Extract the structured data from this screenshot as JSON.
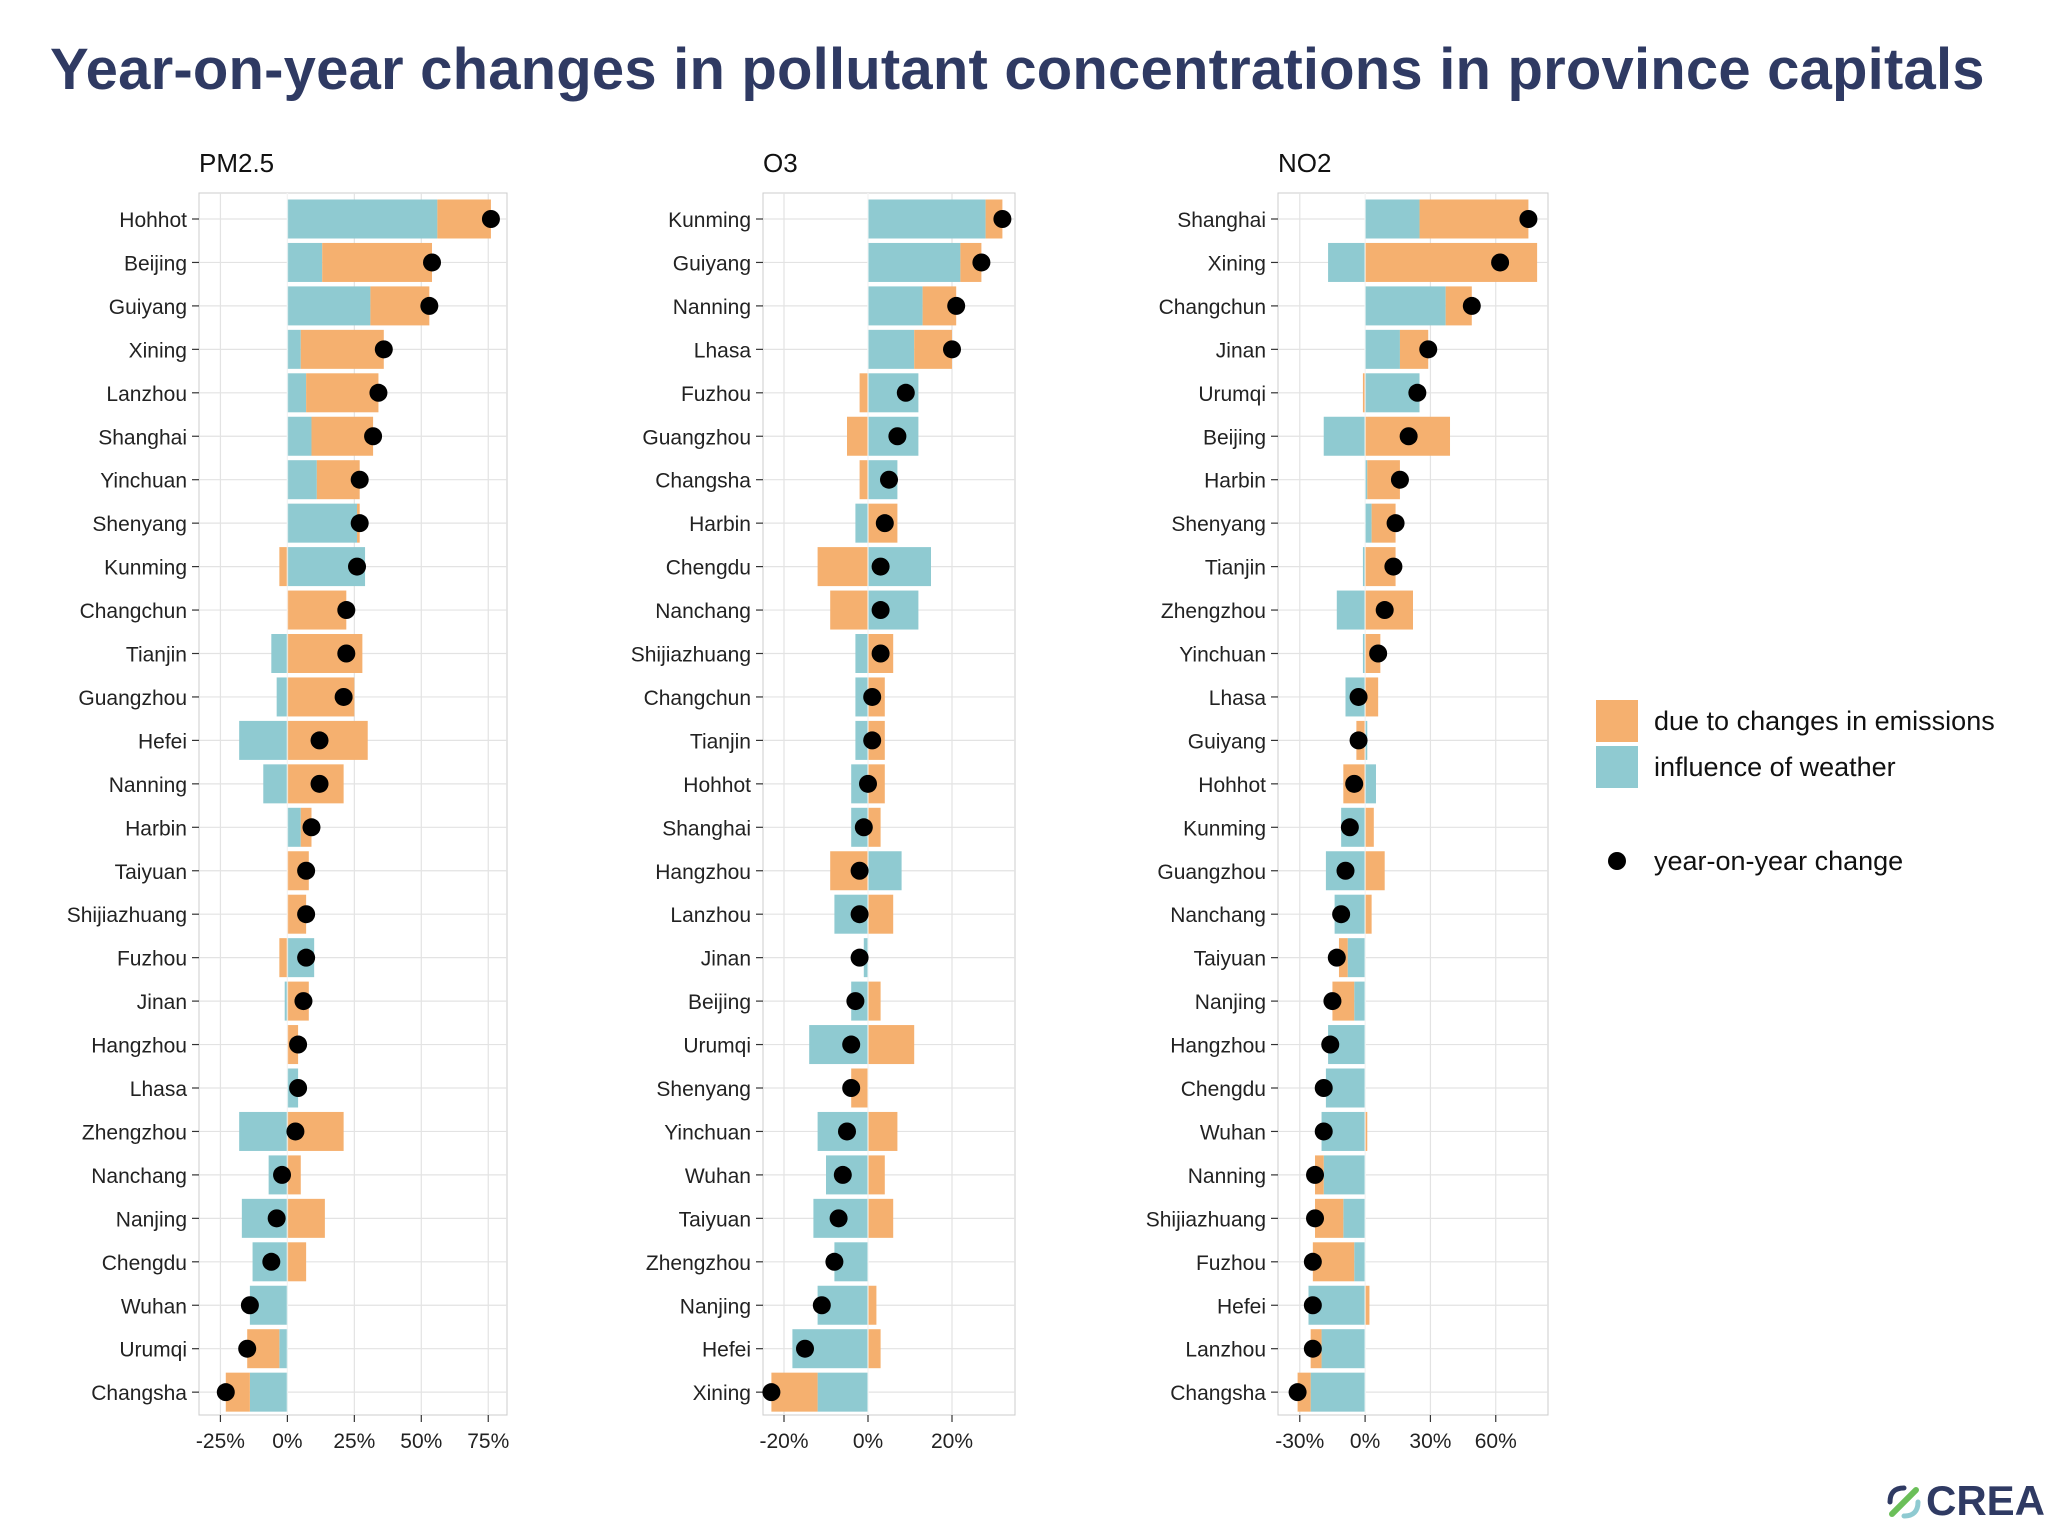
{
  "title": "Year-on-year changes in pollutant concentrations in province capitals",
  "legend": {
    "emissions_label": "due to changes in emissions",
    "weather_label": "influence of weather",
    "yoy_label": "year-on-year change"
  },
  "logo": {
    "text": "CREA",
    "icon": "crea-leaf-icon"
  },
  "colors": {
    "emissions": "#f5b06f",
    "weather": "#8fcad1",
    "dot": "#000000",
    "title": "#2f3a63",
    "grid": "#e3e3e3",
    "frame": "#cccccc"
  },
  "chart_data": [
    {
      "type": "bar",
      "subtitle": "PM2.5",
      "x_ticks": [
        -25,
        0,
        25,
        50,
        75
      ],
      "x_tick_labels": [
        "-25%",
        "0%",
        "25%",
        "50%",
        "75%"
      ],
      "xlim": [
        -33,
        82
      ],
      "grid": true,
      "cities": [
        "Hohhot",
        "Beijing",
        "Guiyang",
        "Xining",
        "Lanzhou",
        "Shanghai",
        "Yinchuan",
        "Shenyang",
        "Kunming",
        "Changchun",
        "Tianjin",
        "Guangzhou",
        "Hefei",
        "Nanning",
        "Harbin",
        "Taiyuan",
        "Shijiazhuang",
        "Fuzhou",
        "Jinan",
        "Hangzhou",
        "Lhasa",
        "Zhengzhou",
        "Nanchang",
        "Nanjing",
        "Chengdu",
        "Wuhan",
        "Urumqi",
        "Changsha"
      ],
      "series": [
        {
          "name": "influence of weather",
          "values": [
            56,
            13,
            31,
            5,
            7,
            9,
            11,
            26,
            29,
            0,
            -6,
            -4,
            -18,
            -9,
            5,
            0,
            0,
            10,
            -1,
            0,
            4,
            -18,
            -7,
            -17,
            -13,
            -14,
            -3,
            -14
          ]
        },
        {
          "name": "due to changes in emissions",
          "values": [
            20,
            41,
            22,
            31,
            27,
            23,
            16,
            1,
            -3,
            22,
            28,
            25,
            30,
            21,
            4,
            8,
            7,
            -3,
            8,
            4,
            0,
            21,
            5,
            14,
            7,
            0,
            -12,
            -9
          ]
        },
        {
          "name": "year-on-year change",
          "values": [
            76,
            54,
            53,
            36,
            34,
            32,
            27,
            27,
            26,
            22,
            22,
            21,
            12,
            12,
            9,
            7,
            7,
            7,
            6,
            4,
            4,
            3,
            -2,
            -4,
            -6,
            -14,
            -15,
            -23
          ]
        }
      ]
    },
    {
      "type": "bar",
      "subtitle": "O3",
      "x_ticks": [
        -20,
        0,
        20
      ],
      "x_tick_labels": [
        "-20%",
        "0%",
        "20%"
      ],
      "xlim": [
        -25,
        35
      ],
      "grid": true,
      "cities": [
        "Kunming",
        "Guiyang",
        "Nanning",
        "Lhasa",
        "Fuzhou",
        "Guangzhou",
        "Changsha",
        "Harbin",
        "Chengdu",
        "Nanchang",
        "Shijiazhuang",
        "Changchun",
        "Tianjin",
        "Hohhot",
        "Shanghai",
        "Hangzhou",
        "Lanzhou",
        "Jinan",
        "Beijing",
        "Urumqi",
        "Shenyang",
        "Yinchuan",
        "Wuhan",
        "Taiyuan",
        "Zhengzhou",
        "Nanjing",
        "Hefei",
        "Xining"
      ],
      "series": [
        {
          "name": "influence of weather",
          "values": [
            28,
            22,
            13,
            11,
            12,
            12,
            7,
            -3,
            15,
            12,
            -3,
            -3,
            -3,
            -4,
            -4,
            8,
            -8,
            -1,
            -4,
            -14,
            0,
            -12,
            -10,
            -13,
            -8,
            -12,
            -18,
            -12
          ]
        },
        {
          "name": "due to changes in emissions",
          "values": [
            4,
            5,
            8,
            9,
            -2,
            -5,
            -2,
            7,
            -12,
            -9,
            6,
            4,
            4,
            4,
            3,
            -9,
            6,
            0,
            3,
            11,
            -4,
            7,
            4,
            6,
            0,
            2,
            3,
            -11
          ]
        },
        {
          "name": "year-on-year change",
          "values": [
            32,
            27,
            21,
            20,
            9,
            7,
            5,
            4,
            3,
            3,
            3,
            1,
            1,
            0,
            -1,
            -2,
            -2,
            -2,
            -3,
            -4,
            -4,
            -5,
            -6,
            -7,
            -8,
            -11,
            -15,
            -23
          ]
        }
      ]
    },
    {
      "type": "bar",
      "subtitle": "NO2",
      "x_ticks": [
        -30,
        0,
        30,
        60
      ],
      "x_tick_labels": [
        "-30%",
        "0%",
        "30%",
        "60%"
      ],
      "xlim": [
        -40,
        84
      ],
      "grid": true,
      "cities": [
        "Shanghai",
        "Xining",
        "Changchun",
        "Jinan",
        "Urumqi",
        "Beijing",
        "Harbin",
        "Shenyang",
        "Tianjin",
        "Zhengzhou",
        "Yinchuan",
        "Lhasa",
        "Guiyang",
        "Hohhot",
        "Kunming",
        "Guangzhou",
        "Nanchang",
        "Taiyuan",
        "Nanjing",
        "Hangzhou",
        "Chengdu",
        "Wuhan",
        "Nanning",
        "Shijiazhuang",
        "Fuzhou",
        "Hefei",
        "Lanzhou",
        "Changsha"
      ],
      "series": [
        {
          "name": "influence of weather",
          "values": [
            25,
            -17,
            37,
            16,
            25,
            -19,
            1,
            3,
            -1,
            -13,
            -1,
            -9,
            1,
            5,
            -11,
            -18,
            -14,
            -8,
            -5,
            -17,
            -18,
            -20,
            -19,
            -10,
            -5,
            -26,
            -20,
            -25
          ]
        },
        {
          "name": "due to changes in emissions",
          "values": [
            50,
            79,
            12,
            13,
            -1,
            39,
            15,
            11,
            14,
            22,
            7,
            6,
            -4,
            -10,
            4,
            9,
            3,
            -4,
            -10,
            0,
            0,
            1,
            -4,
            -13,
            -19,
            2,
            -5,
            -6
          ]
        },
        {
          "name": "year-on-year change",
          "values": [
            75,
            62,
            49,
            29,
            24,
            20,
            16,
            14,
            13,
            9,
            6,
            -3,
            -3,
            -5,
            -7,
            -9,
            -11,
            -13,
            -15,
            -16,
            -19,
            -19,
            -23,
            -23,
            -24,
            -24,
            -24,
            -31
          ]
        }
      ]
    }
  ]
}
